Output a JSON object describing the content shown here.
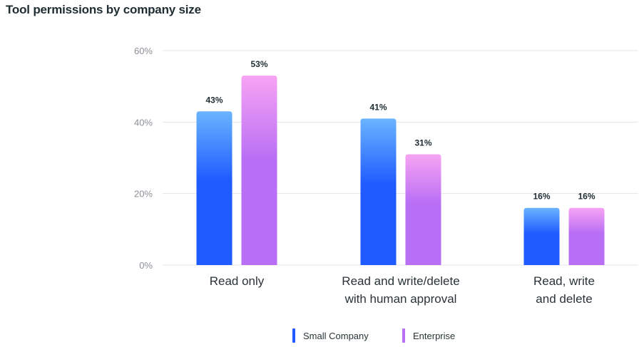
{
  "chart_data": {
    "type": "bar",
    "title": "Tool permissions by company size",
    "categories": [
      [
        "Read only"
      ],
      [
        "Read and write/delete",
        "with human approval"
      ],
      [
        "Read, write",
        "and delete"
      ]
    ],
    "series": [
      {
        "name": "Small Company",
        "values": [
          43,
          41,
          16
        ],
        "labels": [
          "43%",
          "41%",
          "16%"
        ],
        "color_top": "#6ab4ff",
        "color_bottom": "#1f5bff"
      },
      {
        "name": "Enterprise",
        "values": [
          53,
          31,
          16
        ],
        "labels": [
          "53%",
          "31%",
          "16%"
        ],
        "color_top": "#f7a4f3",
        "color_bottom": "#b86ef5"
      }
    ],
    "yticks": [
      0,
      20,
      40,
      60
    ],
    "ytick_labels": [
      "0%",
      "20%",
      "40%",
      "60%"
    ],
    "ylim": [
      0,
      60
    ],
    "grid": true,
    "xlabel": "",
    "ylabel": "",
    "legend_position": "bottom-center"
  }
}
